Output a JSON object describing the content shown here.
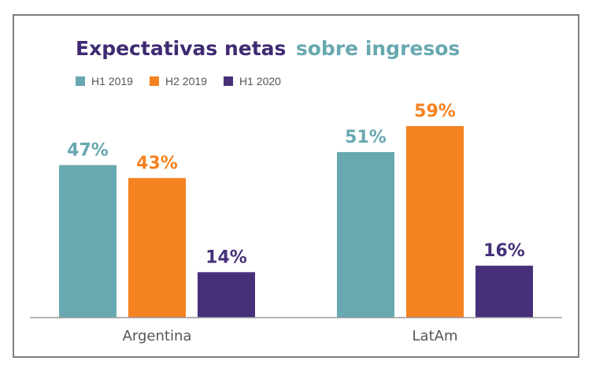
{
  "chart_data": {
    "type": "bar",
    "title_parts": [
      {
        "text": "Expectativas netas",
        "color": "#3f2a72"
      },
      {
        "text": "sobre ingresos",
        "color": "#68a8b0"
      }
    ],
    "categories": [
      "Argentina",
      "LatAm"
    ],
    "series": [
      {
        "name": "H1 2019",
        "color": "#68a8b0",
        "values": [
          47,
          51
        ],
        "labels": [
          "47%",
          "51%"
        ]
      },
      {
        "name": "H2 2019",
        "color": "#f58220",
        "values": [
          43,
          59
        ],
        "labels": [
          "43%",
          "59%"
        ]
      },
      {
        "name": "H1 2020",
        "color": "#46307a",
        "values": [
          14,
          16
        ],
        "labels": [
          "14%",
          "16%"
        ]
      }
    ],
    "ylim": [
      0,
      70
    ],
    "grid": false,
    "legend_position": "top-left",
    "xlabel": "",
    "ylabel": ""
  }
}
